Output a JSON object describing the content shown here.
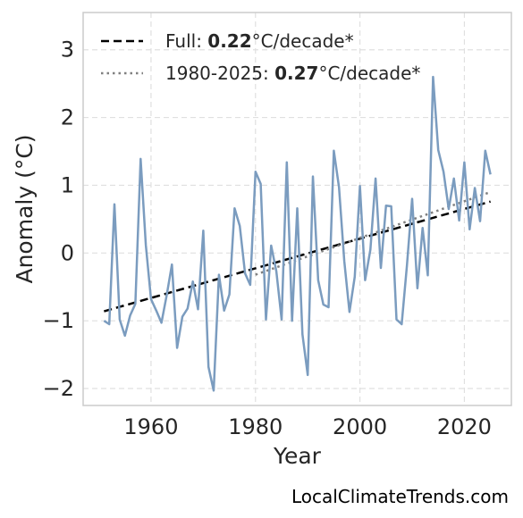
{
  "chart_data": {
    "type": "line",
    "xlabel": "Year",
    "ylabel": "Anomaly (°C)",
    "xlim": [
      1947,
      2029
    ],
    "ylim": [
      -2.25,
      3.55
    ],
    "xticks": [
      1960,
      1980,
      2000,
      2020
    ],
    "yticks": [
      -2,
      -1,
      0,
      1,
      2,
      3
    ],
    "grid": true,
    "legend_position": "top-left",
    "series": [
      {
        "x": [
          1951,
          1952,
          1953,
          1954,
          1955,
          1956,
          1957,
          1958,
          1959,
          1960,
          1961,
          1962,
          1963,
          1964,
          1965,
          1966,
          1967,
          1968,
          1969,
          1970,
          1971,
          1972,
          1973,
          1974,
          1975,
          1976,
          1977,
          1978,
          1979,
          1980,
          1981,
          1982,
          1983,
          1984,
          1985,
          1986,
          1987,
          1988,
          1989,
          1990,
          1991,
          1992,
          1993,
          1994,
          1995,
          1996,
          1997,
          1998,
          1999,
          2000,
          2001,
          2002,
          2003,
          2004,
          2005,
          2006,
          2007,
          2008,
          2009,
          2010,
          2011,
          2012,
          2013,
          2014,
          2015,
          2016,
          2017,
          2018,
          2019,
          2020,
          2021,
          2022,
          2023,
          2024,
          2025
        ],
        "values": [
          -1.0,
          -1.05,
          0.72,
          -0.98,
          -1.22,
          -0.92,
          -0.75,
          1.39,
          0.12,
          -0.68,
          -0.85,
          -1.03,
          -0.62,
          -0.17,
          -1.4,
          -0.94,
          -0.82,
          -0.42,
          -0.83,
          0.33,
          -1.68,
          -2.03,
          -0.32,
          -0.85,
          -0.61,
          0.66,
          0.4,
          -0.3,
          -0.47,
          1.2,
          1.02,
          -0.98,
          0.11,
          -0.27,
          -0.98,
          1.34,
          -1.0,
          0.66,
          -1.2,
          -1.8,
          1.13,
          -0.4,
          -0.76,
          -0.8,
          1.51,
          0.97,
          -0.12,
          -0.87,
          -0.35,
          0.99,
          -0.4,
          0.05,
          1.1,
          -0.22,
          0.7,
          0.69,
          -0.98,
          -1.05,
          -0.18,
          0.8,
          -0.52,
          0.37,
          -0.33,
          2.6,
          1.52,
          1.2,
          0.65,
          1.1,
          0.48,
          1.34,
          0.35,
          0.96,
          0.47,
          1.51,
          1.16
        ]
      }
    ],
    "trends": [
      {
        "label_prefix": "Full: ",
        "rate": "0.22",
        "unit": "°C/decade*",
        "x": [
          1951,
          2025
        ],
        "y": [
          -0.86,
          0.76
        ],
        "style": "dashed"
      },
      {
        "label_prefix": "1980-2025: ",
        "rate": "0.27",
        "unit": "°C/decade*",
        "x": [
          1980,
          2025
        ],
        "y": [
          -0.32,
          0.9
        ],
        "style": "dotted"
      }
    ],
    "colors": {
      "series": "#7b9cbf",
      "trend_full": "#000000",
      "trend_recent": "#808080",
      "grid": "#e0e0e0",
      "frame": "#cccccc"
    }
  },
  "credit": "LocalClimateTrends.com"
}
